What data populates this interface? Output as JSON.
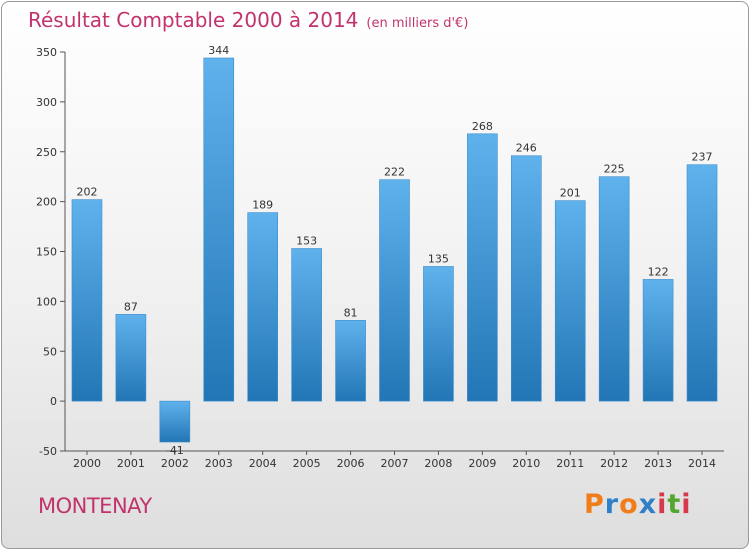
{
  "title": "Résultat Comptable 2000 à 2014",
  "subtitle": "(en milliers d'€)",
  "commune": "MONTENAY",
  "logo": {
    "text": "Proxiti",
    "letters": [
      "P",
      "r",
      "o",
      "x",
      "i",
      "t",
      "i"
    ],
    "colors": [
      "#f07d1a",
      "#2f80c8",
      "#f07d1a",
      "#2f80c8",
      "#d63a4a",
      "#55a630",
      "#d63a4a"
    ]
  },
  "colors": {
    "bar_top": "#5fb2ec",
    "bar_bottom": "#2276b5",
    "axis": "#555555",
    "grid": "#cccccc",
    "title": "#c2336e"
  },
  "chart_data": {
    "type": "bar",
    "title": "Résultat Comptable 2000 à 2014",
    "xlabel": "",
    "ylabel": "",
    "categories": [
      "2000",
      "2001",
      "2002",
      "2003",
      "2004",
      "2005",
      "2006",
      "2007",
      "2008",
      "2009",
      "2010",
      "2011",
      "2012",
      "2013",
      "2014"
    ],
    "values": [
      202,
      87,
      -41,
      344,
      189,
      153,
      81,
      222,
      135,
      268,
      246,
      201,
      225,
      122,
      237
    ],
    "ylim": [
      -50,
      350
    ],
    "yticks": [
      -50,
      0,
      50,
      100,
      150,
      200,
      250,
      300,
      350
    ],
    "grid": false
  }
}
